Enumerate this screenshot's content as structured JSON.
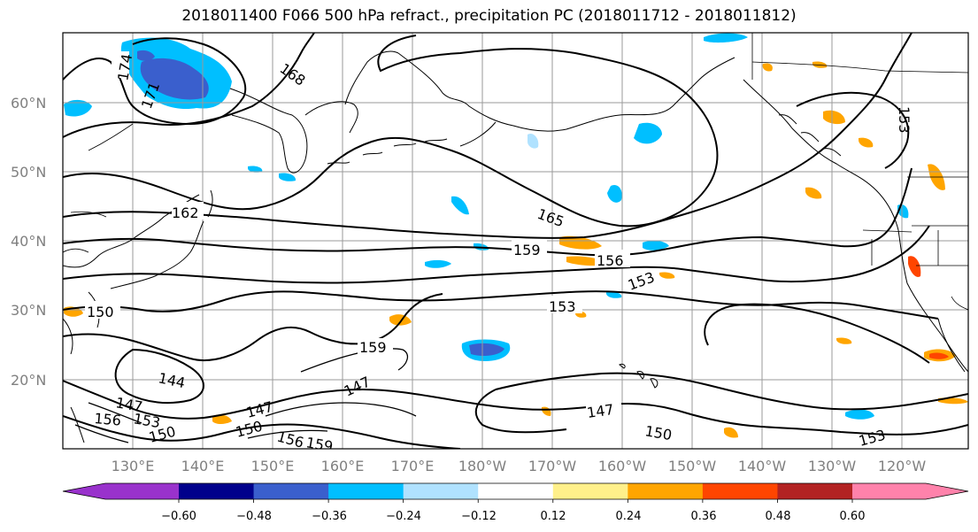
{
  "title": "2018011400 F066 500 hPa refract., precipitation PC (2018011712 - 2018011812)",
  "lat_labels": [
    "60°N",
    "50°N",
    "40°N",
    "30°N",
    "20°N"
  ],
  "lon_labels": [
    "130°E",
    "140°E",
    "150°E",
    "160°E",
    "170°E",
    "180°W",
    "170°W",
    "160°W",
    "150°W",
    "140°W",
    "130°W",
    "120°W"
  ],
  "contour_labels": [
    "174",
    "171",
    "168",
    "162",
    "165",
    "159",
    "156",
    "153",
    "153",
    "153",
    "150",
    "159",
    "144",
    "147",
    "147",
    "147",
    "147",
    "150",
    "150",
    "153",
    "156",
    "159",
    "150",
    "153",
    "156"
  ],
  "colorbar": {
    "ticks": [
      "−0.60",
      "−0.48",
      "−0.36",
      "−0.24",
      "−0.12",
      "0.12",
      "0.24",
      "0.36",
      "0.48",
      "0.60"
    ],
    "colors": [
      "#9932cc",
      "#00008b",
      "#3a5fcd",
      "#00bfff",
      "#b0e2ff",
      "#ffffff",
      "#fff08a",
      "#ffa500",
      "#ff4500",
      "#b22222",
      "#ff82ab"
    ]
  }
}
